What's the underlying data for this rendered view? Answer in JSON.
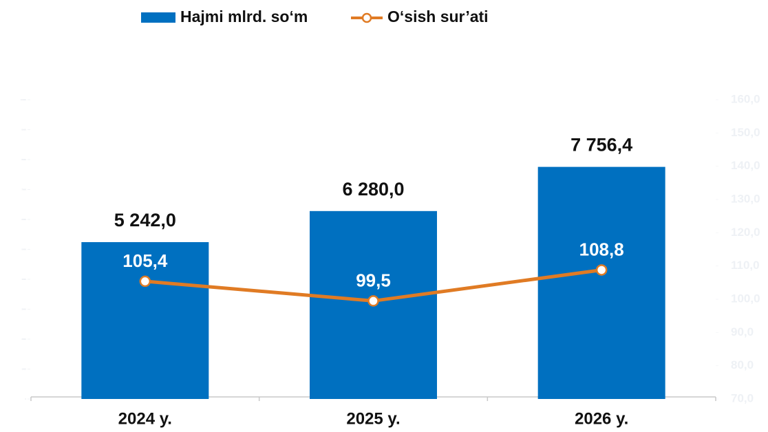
{
  "chart_data": {
    "type": "bar",
    "categories": [
      "2024 y.",
      "2025 y.",
      "2026 y."
    ],
    "series": [
      {
        "name": "Hajmi mlrd. so‘m",
        "type": "bar",
        "color": "#0070c0",
        "values": [
          5242.0,
          6280.0,
          7756.4
        ],
        "value_labels": [
          "5 242,0",
          "6 280,0",
          "7 756,4"
        ]
      },
      {
        "name": "O‘sish sur’ati",
        "type": "line",
        "axis": "y2",
        "color": "#e07b24",
        "values": [
          105.4,
          99.5,
          108.8
        ],
        "value_labels": [
          "105,4",
          "99,5",
          "108,8"
        ]
      }
    ],
    "ylim": [
      0,
      10000
    ],
    "yticks": [
      0,
      1000,
      2000,
      3000,
      4000,
      5000,
      6000,
      7000,
      8000,
      9000,
      10000
    ],
    "y2lim": [
      70,
      160
    ],
    "y2ticks": [
      {
        "value": 70,
        "label": "70,0"
      },
      {
        "value": 80,
        "label": "80,0"
      },
      {
        "value": 90,
        "label": "90,0"
      },
      {
        "value": 100,
        "label": "100,0"
      },
      {
        "value": 110,
        "label": "110,0"
      },
      {
        "value": 120,
        "label": "120,0"
      },
      {
        "value": 130,
        "label": "130,0"
      },
      {
        "value": 140,
        "label": "140,0"
      },
      {
        "value": 150,
        "label": "150,0"
      },
      {
        "value": 160,
        "label": "160,0"
      }
    ],
    "legend": "top"
  }
}
